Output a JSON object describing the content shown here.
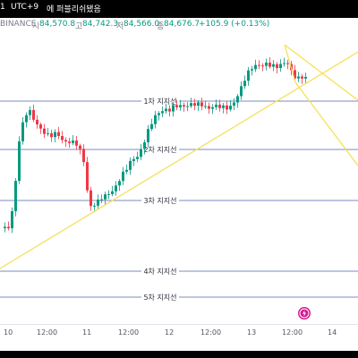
{
  "top_bar": {
    "prefix": "1",
    "timezone": "UTC+9",
    "notice": "에 퍼블리쉬됐음"
  },
  "ohlc": {
    "exchange": "BINANCE",
    "open_label": "시",
    "open": "84,570.8",
    "high_label": "고",
    "high": "84,742.3",
    "low_label": "저",
    "low": "84,566.0",
    "close_label": "종",
    "close": "84,676.7",
    "change": "+105.9 (+0.13%)"
  },
  "support_lines": [
    {
      "label": "1차 지지선"
    },
    {
      "label": "2차 지지선"
    },
    {
      "label": "3차 지지선"
    },
    {
      "label": "4차 지지선"
    },
    {
      "label": "5차 지지선"
    }
  ],
  "time_axis": {
    "ticks": [
      "10",
      "12:00",
      "11",
      "12:00",
      "12",
      "12:00",
      "13",
      "12:00",
      "14"
    ]
  },
  "icons": {
    "bottom": "lightning-icon"
  },
  "colors": {
    "up": "#089981",
    "down": "#f23645",
    "support_line": "#7e8bc2",
    "trendline": "#f5e05a",
    "background": "#ffffff",
    "top_bar": "#000000",
    "accent_icon": "#d61a8e"
  }
}
